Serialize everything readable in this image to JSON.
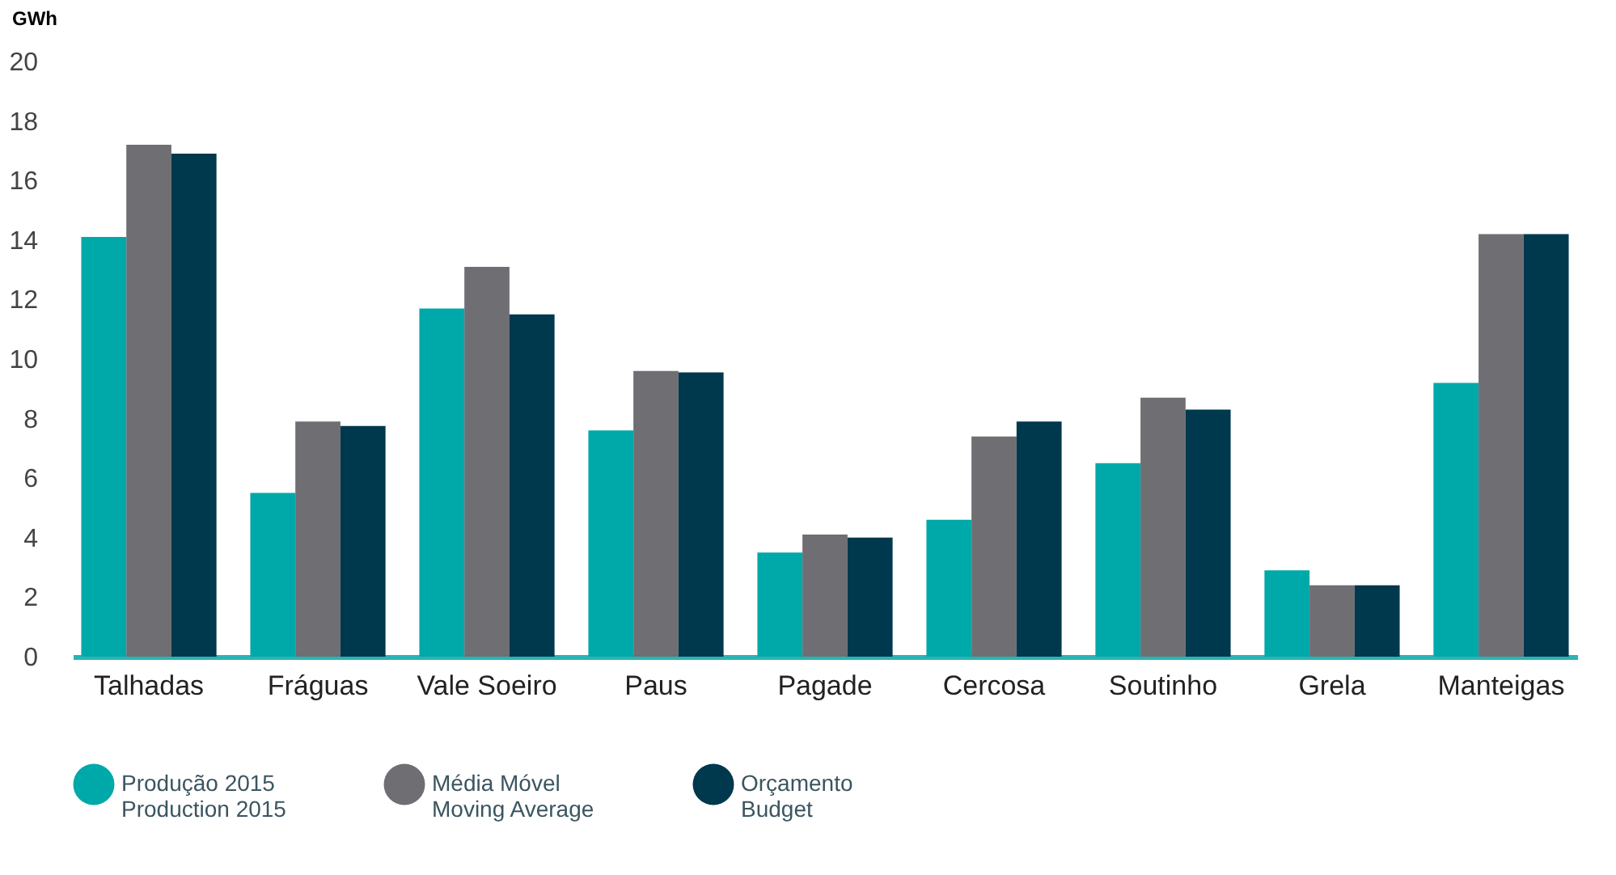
{
  "chart_data": {
    "type": "bar",
    "ylabel": "GWh",
    "categories": [
      "Talhadas",
      "Fráguas",
      "Vale Soeiro",
      "Paus",
      "Pagade",
      "Cercosa",
      "Soutinho",
      "Grela",
      "Manteigas"
    ],
    "series": [
      {
        "name": "Produção 2015\nProduction 2015",
        "color": "#00a9a9",
        "values": [
          14.1,
          5.5,
          11.7,
          7.6,
          3.5,
          4.6,
          6.5,
          2.9,
          9.2
        ]
      },
      {
        "name": "Média Móvel\nMoving Average",
        "color": "#6e6e73",
        "values": [
          17.2,
          7.9,
          13.1,
          9.6,
          4.1,
          7.4,
          8.7,
          2.4,
          14.2
        ]
      },
      {
        "name": "Orçamento\nBudget",
        "color": "#00384d",
        "values": [
          16.9,
          7.75,
          11.5,
          9.55,
          4.0,
          7.9,
          8.3,
          2.4,
          14.2
        ]
      }
    ],
    "ylim": [
      0,
      20
    ],
    "yticks": [
      0,
      2,
      4,
      6,
      8,
      10,
      12,
      14,
      16,
      18,
      20
    ],
    "grid": false,
    "legend": "bottom"
  }
}
